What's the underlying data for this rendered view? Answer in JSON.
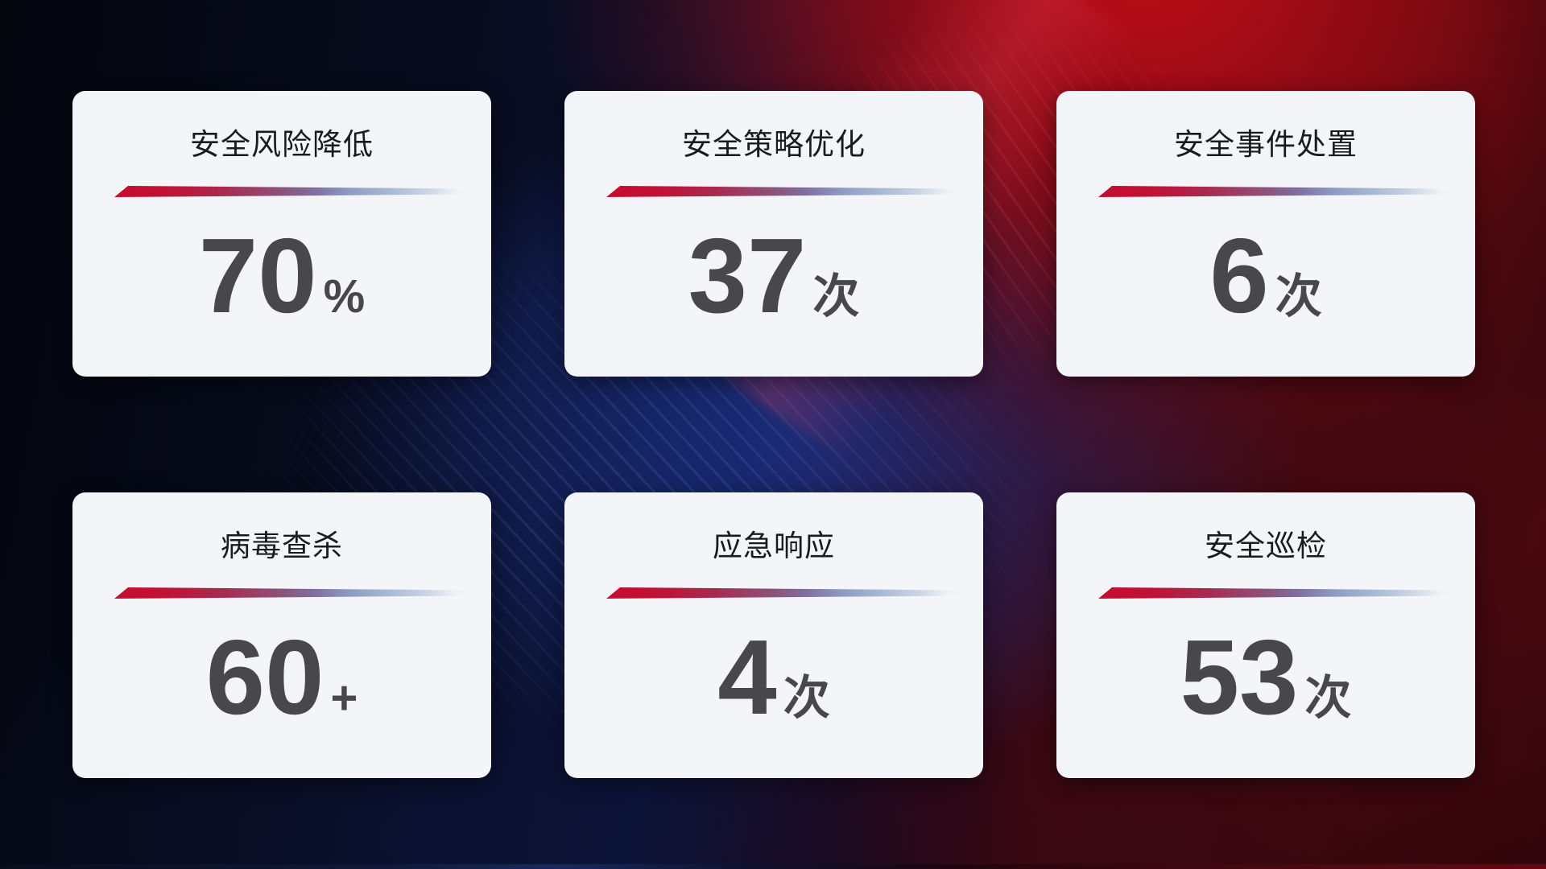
{
  "cards": [
    {
      "title": "安全风险降低",
      "value": "70",
      "unit": "%"
    },
    {
      "title": "安全策略优化",
      "value": "37",
      "unit": "次"
    },
    {
      "title": "安全事件处置",
      "value": "6",
      "unit": "次"
    },
    {
      "title": "病毒查杀",
      "value": "60",
      "unit": "+"
    },
    {
      "title": "应急响应",
      "value": "4",
      "unit": "次"
    },
    {
      "title": "安全巡检",
      "value": "53",
      "unit": "次"
    }
  ],
  "colors": {
    "accent_red": "#c60d2e",
    "accent_blue": "#8e9cc2",
    "card_bg": "#f4f5f8",
    "title_color": "#1a1b1e",
    "number_color": "#48484c",
    "bg_dark_navy": "#0b1233",
    "bg_bright_red": "#b50d16",
    "bg_maroon": "#4a0a10"
  }
}
